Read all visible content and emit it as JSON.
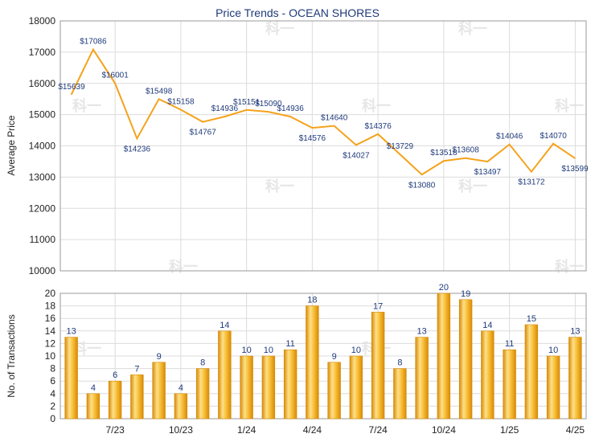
{
  "chart_data": [
    {
      "type": "line",
      "title": "Price Trends - OCEAN SHORES",
      "ylabel": "Average Price",
      "ylim": [
        10000,
        18000
      ],
      "yticks": [
        10000,
        11000,
        12000,
        13000,
        14000,
        15000,
        16000,
        17000,
        18000
      ],
      "grid": true,
      "color": "#f5a21b",
      "points": [
        {
          "label": "$15639",
          "value": 15639
        },
        {
          "label": "$17086",
          "value": 17086
        },
        {
          "label": "$16001",
          "value": 16001
        },
        {
          "label": "$14236",
          "value": 14236
        },
        {
          "label": "$15498",
          "value": 15498
        },
        {
          "label": "$15158",
          "value": 15158
        },
        {
          "label": "$14767",
          "value": 14767
        },
        {
          "label": "$14936",
          "value": 14936
        },
        {
          "label": "$15151",
          "value": 15151
        },
        {
          "label": "$15090",
          "value": 15090
        },
        {
          "label": "$14936",
          "value": 14936
        },
        {
          "label": "$14576",
          "value": 14576
        },
        {
          "label": "$14640",
          "value": 14640
        },
        {
          "label": "$14027",
          "value": 14027
        },
        {
          "label": "$14376",
          "value": 14376
        },
        {
          "label": "$13729",
          "value": 13729
        },
        {
          "label": "$13080",
          "value": 13080
        },
        {
          "label": "$13518",
          "value": 13518
        },
        {
          "label": "$13608",
          "value": 13608
        },
        {
          "label": "$13497",
          "value": 13497
        },
        {
          "label": "$14046",
          "value": 14046
        },
        {
          "label": "$13172",
          "value": 13172
        },
        {
          "label": "$14070",
          "value": 14070
        },
        {
          "label": "$13599",
          "value": 13599
        }
      ]
    },
    {
      "type": "bar",
      "ylabel": "No. of Transactions",
      "ylim": [
        0,
        20
      ],
      "yticks": [
        0,
        2,
        4,
        6,
        8,
        10,
        12,
        14,
        16,
        18,
        20
      ],
      "grid": true,
      "color": "#f5a21b",
      "values": [
        13,
        4,
        6,
        7,
        9,
        4,
        8,
        14,
        10,
        10,
        11,
        18,
        9,
        10,
        17,
        8,
        13,
        20,
        19,
        14,
        11,
        15,
        10,
        13
      ],
      "xticks": [
        {
          "label": "7/23",
          "index": 2
        },
        {
          "label": "10/23",
          "index": 5
        },
        {
          "label": "1/24",
          "index": 8
        },
        {
          "label": "4/24",
          "index": 11
        },
        {
          "label": "7/24",
          "index": 14
        },
        {
          "label": "10/24",
          "index": 17
        },
        {
          "label": "1/25",
          "index": 20
        },
        {
          "label": "4/25",
          "index": 23
        }
      ]
    }
  ]
}
